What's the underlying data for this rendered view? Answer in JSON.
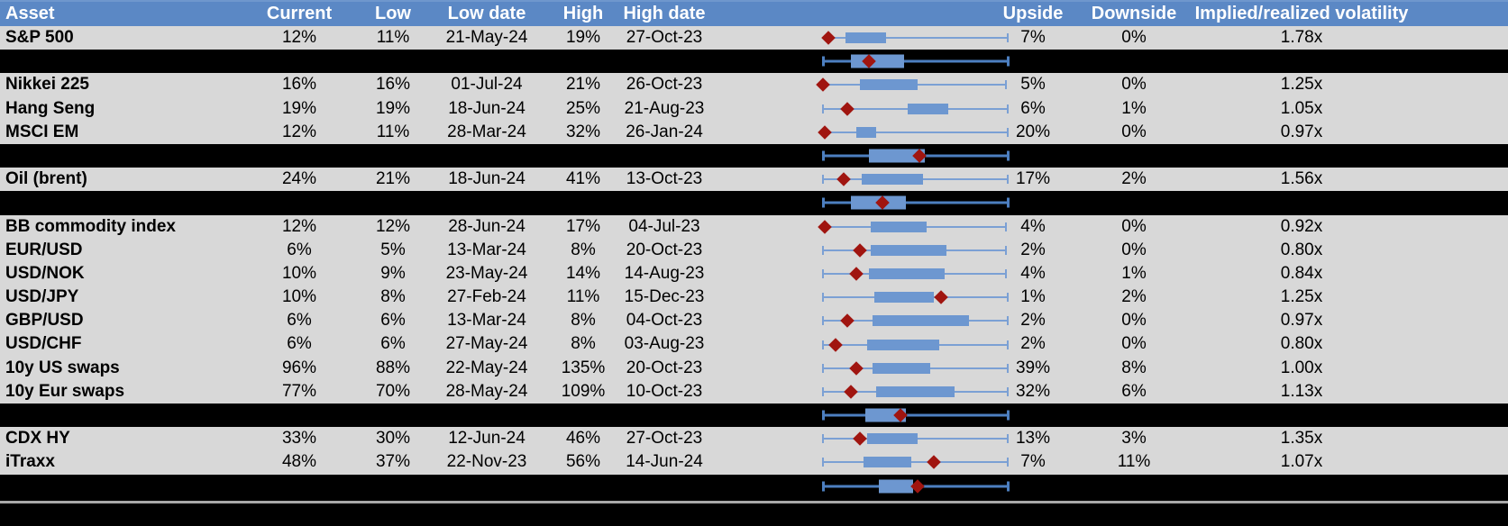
{
  "header": {
    "labels": [
      "Asset",
      "Current",
      "Low",
      "Low date",
      "High",
      "High date",
      "Upside",
      "Downside",
      "Implied/realized volatility"
    ]
  },
  "colors": {
    "header_bg": "#5b88c5",
    "header_text": "#ffffff",
    "row_bg": "#d8d8d8",
    "separator_bg": "#000000",
    "box_fill": "#6d97d0",
    "whisker": "#7ba0d4",
    "whisker_on_black": "#4d7fc0",
    "marker": "#a01510",
    "footer_line": "#a8a8a8",
    "text": "#000000"
  },
  "chart_data": {
    "type": "table-with-boxplots",
    "axis_range": [
      0,
      1
    ],
    "note_columns": [
      "Asset",
      "Current",
      "Low",
      "Low date",
      "High",
      "High date",
      "Upside",
      "Downside",
      "Implied/realized volatility"
    ],
    "rows": [
      {
        "kind": "asset",
        "asset": "S&P 500",
        "current": "12%",
        "low": "11%",
        "low_date": "21-May-24",
        "high": "19%",
        "high_date": "27-Oct-23",
        "upside": "7%",
        "downside": "0%",
        "implied_realized": "1.78x",
        "plot": {
          "whisker": [
            0.03,
            1.0
          ],
          "box": [
            0.12,
            0.34
          ],
          "marker": 0.03
        }
      },
      {
        "kind": "summary",
        "plot": {
          "whisker": [
            0.0,
            1.0
          ],
          "box": [
            0.15,
            0.44
          ],
          "marker": 0.25
        }
      },
      {
        "kind": "asset",
        "asset": "Nikkei 225",
        "current": "16%",
        "low": "16%",
        "low_date": "01-Jul-24",
        "high": "21%",
        "high_date": "26-Oct-23",
        "upside": "5%",
        "downside": "0%",
        "implied_realized": "1.25x",
        "plot": {
          "whisker": [
            0.0,
            0.99
          ],
          "box": [
            0.2,
            0.51
          ],
          "marker": 0.0
        }
      },
      {
        "kind": "asset",
        "asset": "Hang Seng",
        "current": "19%",
        "low": "19%",
        "low_date": "18-Jun-24",
        "high": "25%",
        "high_date": "21-Aug-23",
        "upside": "6%",
        "downside": "1%",
        "implied_realized": "1.05x",
        "plot": {
          "whisker": [
            0.0,
            1.0
          ],
          "box": [
            0.46,
            0.68
          ],
          "marker": 0.13
        }
      },
      {
        "kind": "asset",
        "asset": "MSCI EM",
        "current": "12%",
        "low": "11%",
        "low_date": "28-Mar-24",
        "high": "32%",
        "high_date": "26-Jan-24",
        "upside": "20%",
        "downside": "0%",
        "implied_realized": "0.97x",
        "plot": {
          "whisker": [
            0.005,
            1.0
          ],
          "box": [
            0.18,
            0.29
          ],
          "marker": 0.01
        }
      },
      {
        "kind": "summary",
        "plot": {
          "whisker": [
            0.0,
            1.0
          ],
          "box": [
            0.25,
            0.55
          ],
          "marker": 0.52
        }
      },
      {
        "kind": "asset",
        "asset": "Oil (brent)",
        "current": "24%",
        "low": "21%",
        "low_date": "18-Jun-24",
        "high": "41%",
        "high_date": "13-Oct-23",
        "upside": "17%",
        "downside": "2%",
        "implied_realized": "1.56x",
        "plot": {
          "whisker": [
            0.0,
            1.0
          ],
          "box": [
            0.21,
            0.54
          ],
          "marker": 0.11
        }
      },
      {
        "kind": "summary",
        "plot": {
          "whisker": [
            0.0,
            1.0
          ],
          "box": [
            0.15,
            0.45
          ],
          "marker": 0.32
        }
      },
      {
        "kind": "asset",
        "asset": "BB commodity index",
        "current": "12%",
        "low": "12%",
        "low_date": "28-Jun-24",
        "high": "17%",
        "high_date": "04-Jul-23",
        "upside": "4%",
        "downside": "0%",
        "implied_realized": "0.92x",
        "plot": {
          "whisker": [
            0.01,
            0.99
          ],
          "box": [
            0.26,
            0.56
          ],
          "marker": 0.01
        }
      },
      {
        "kind": "asset",
        "asset": "EUR/USD",
        "current": "6%",
        "low": "5%",
        "low_date": "13-Mar-24",
        "high": "8%",
        "high_date": "20-Oct-23",
        "upside": "2%",
        "downside": "0%",
        "implied_realized": "0.80x",
        "plot": {
          "whisker": [
            0.0,
            0.99
          ],
          "box": [
            0.26,
            0.67
          ],
          "marker": 0.2
        }
      },
      {
        "kind": "asset",
        "asset": "USD/NOK",
        "current": "10%",
        "low": "9%",
        "low_date": "23-May-24",
        "high": "14%",
        "high_date": "14-Aug-23",
        "upside": "4%",
        "downside": "1%",
        "implied_realized": "0.84x",
        "plot": {
          "whisker": [
            0.0,
            0.99
          ],
          "box": [
            0.25,
            0.66
          ],
          "marker": 0.18
        }
      },
      {
        "kind": "asset",
        "asset": "USD/JPY",
        "current": "10%",
        "low": "8%",
        "low_date": "27-Feb-24",
        "high": "11%",
        "high_date": "15-Dec-23",
        "upside": "1%",
        "downside": "2%",
        "implied_realized": "1.25x",
        "plot": {
          "whisker": [
            0.0,
            1.0
          ],
          "box": [
            0.28,
            0.6
          ],
          "marker": 0.64
        }
      },
      {
        "kind": "asset",
        "asset": "GBP/USD",
        "current": "6%",
        "low": "6%",
        "low_date": "13-Mar-24",
        "high": "8%",
        "high_date": "04-Oct-23",
        "upside": "2%",
        "downside": "0%",
        "implied_realized": "0.97x",
        "plot": {
          "whisker": [
            0.0,
            1.0
          ],
          "box": [
            0.27,
            0.79
          ],
          "marker": 0.13
        }
      },
      {
        "kind": "asset",
        "asset": "USD/CHF",
        "current": "6%",
        "low": "6%",
        "low_date": "27-May-24",
        "high": "8%",
        "high_date": "03-Aug-23",
        "upside": "2%",
        "downside": "0%",
        "implied_realized": "0.80x",
        "plot": {
          "whisker": [
            0.0,
            1.0
          ],
          "box": [
            0.24,
            0.63
          ],
          "marker": 0.07
        }
      },
      {
        "kind": "asset",
        "asset": "10y US swaps",
        "current": "96%",
        "low": "88%",
        "low_date": "22-May-24",
        "high": "135%",
        "high_date": "20-Oct-23",
        "upside": "39%",
        "downside": "8%",
        "implied_realized": "1.00x",
        "plot": {
          "whisker": [
            0.0,
            1.0
          ],
          "box": [
            0.27,
            0.58
          ],
          "marker": 0.18
        }
      },
      {
        "kind": "asset",
        "asset": "10y Eur swaps",
        "current": "77%",
        "low": "70%",
        "low_date": "28-May-24",
        "high": "109%",
        "high_date": "10-Oct-23",
        "upside": "32%",
        "downside": "6%",
        "implied_realized": "1.13x",
        "plot": {
          "whisker": [
            0.0,
            1.0
          ],
          "box": [
            0.29,
            0.71
          ],
          "marker": 0.15
        }
      },
      {
        "kind": "summary",
        "plot": {
          "whisker": [
            0.0,
            1.0
          ],
          "box": [
            0.23,
            0.45
          ],
          "marker": 0.42
        }
      },
      {
        "kind": "asset",
        "asset": "CDX HY",
        "current": "33%",
        "low": "30%",
        "low_date": "12-Jun-24",
        "high": "46%",
        "high_date": "27-Oct-23",
        "upside": "13%",
        "downside": "3%",
        "implied_realized": "1.35x",
        "plot": {
          "whisker": [
            0.0,
            1.0
          ],
          "box": [
            0.24,
            0.51
          ],
          "marker": 0.2
        }
      },
      {
        "kind": "asset",
        "asset": "iTraxx",
        "current": "48%",
        "low": "37%",
        "low_date": "22-Nov-23",
        "high": "56%",
        "high_date": "14-Jun-24",
        "upside": "7%",
        "downside": "11%",
        "implied_realized": "1.07x",
        "plot": {
          "whisker": [
            0.0,
            1.0
          ],
          "box": [
            0.22,
            0.48
          ],
          "marker": 0.6
        }
      },
      {
        "kind": "summary",
        "plot": {
          "whisker": [
            0.0,
            1.0
          ],
          "box": [
            0.3,
            0.49
          ],
          "marker": 0.51
        }
      }
    ]
  }
}
